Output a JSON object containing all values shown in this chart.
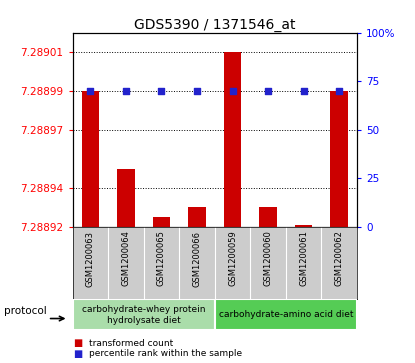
{
  "title": "GDS5390 / 1371546_at",
  "samples": [
    "GSM1200063",
    "GSM1200064",
    "GSM1200065",
    "GSM1200066",
    "GSM1200059",
    "GSM1200060",
    "GSM1200061",
    "GSM1200062"
  ],
  "bar_values": [
    7.28899,
    7.28895,
    7.288925,
    7.28893,
    7.28901,
    7.28893,
    7.288921,
    7.28899
  ],
  "percentile_values": [
    70,
    70,
    70,
    70,
    70,
    70,
    70,
    70
  ],
  "bar_bottom": 7.28892,
  "ylim_left": [
    7.28892,
    7.28902
  ],
  "ylim_right": [
    0,
    100
  ],
  "yticks_left": [
    7.28892,
    7.28894,
    7.28897,
    7.28899,
    7.28901
  ],
  "ytick_labels_left": [
    "7.28892",
    "7.28894",
    "7.28897",
    "7.28899",
    "7.28901"
  ],
  "yticks_right": [
    0,
    25,
    50,
    75,
    100
  ],
  "ytick_labels_right": [
    "0",
    "25",
    "50",
    "75",
    "100%"
  ],
  "bar_color": "#cc0000",
  "percentile_color": "#2222cc",
  "grid_color": "#000000",
  "bar_width": 0.5,
  "protocol_groups": [
    {
      "label": "carbohydrate-whey protein\nhydrolysate diet",
      "start": 0,
      "end": 3,
      "color": "#aaddaa"
    },
    {
      "label": "carbohydrate-amino acid diet",
      "start": 4,
      "end": 7,
      "color": "#55cc55"
    }
  ],
  "legend_bar_label": "transformed count",
  "legend_percentile_label": "percentile rank within the sample",
  "protocol_label": "protocol",
  "bg_color": "#cccccc",
  "plot_bg_color": "#ffffff",
  "title_fontsize": 10,
  "tick_fontsize": 7.5,
  "sample_fontsize": 6
}
